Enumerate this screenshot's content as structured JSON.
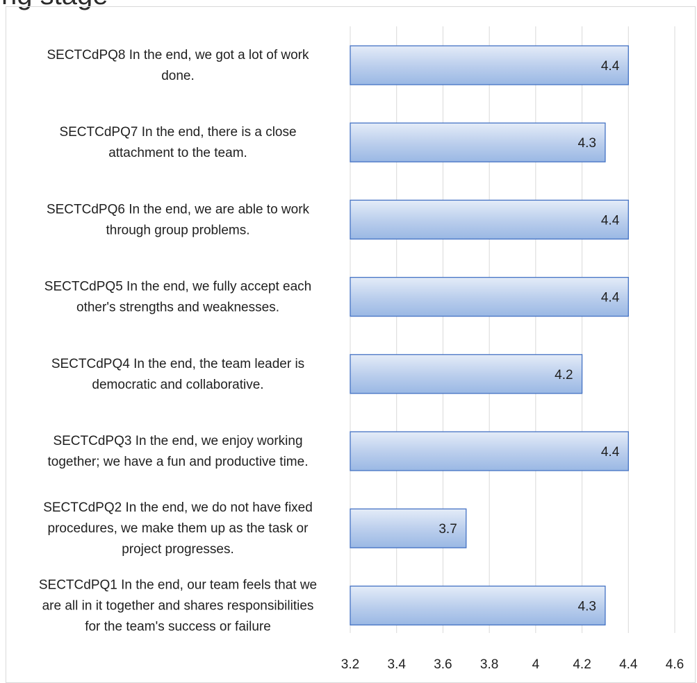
{
  "page": {
    "title_fragment": "ng stage"
  },
  "chart_data": {
    "type": "bar",
    "orientation": "horizontal",
    "categories": [
      "SECTCdPQ8 In the end, we got a lot of work done.",
      "SECTCdPQ7 In the end, there is a close attachment to the team.",
      "SECTCdPQ6 In the end, we are able to work through group problems.",
      "SECTCdPQ5 In the end, we fully accept each other's strengths and weaknesses.",
      "SECTCdPQ4 In the end, the team leader is democratic and collaborative.",
      "SECTCdPQ3 In the end, we enjoy working together; we have a fun and productive time.",
      "SECTCdPQ2 In the end, we do not have fixed procedures, we make them up as the task or project progresses.",
      "SECTCdPQ1 In the end, our team feels that we are all in it together and shares responsibilities for the team's success or failure"
    ],
    "category_lines": [
      [
        "SECTCdPQ8 In the end, we got a lot of work",
        "done."
      ],
      [
        "SECTCdPQ7 In the end, there is a close",
        "attachment to the team."
      ],
      [
        "SECTCdPQ6 In the end, we are able to work",
        "through group problems."
      ],
      [
        "SECTCdPQ5 In the end, we fully accept each",
        "other's strengths and weaknesses."
      ],
      [
        "SECTCdPQ4 In the end, the team leader is",
        "democratic and collaborative."
      ],
      [
        "SECTCdPQ3 In the end, we enjoy working",
        "together; we have a fun and productive time."
      ],
      [
        "SECTCdPQ2 In the end, we do not have fixed",
        "procedures, we make them up as the task or",
        "project progresses."
      ],
      [
        "SECTCdPQ1 In the end, our team feels that we",
        "are all in it together and shares responsibilities",
        "for the team's success or failure"
      ]
    ],
    "values": [
      4.4,
      4.3,
      4.4,
      4.4,
      4.2,
      4.4,
      3.7,
      4.3
    ],
    "value_labels": [
      "4.4",
      "4.3",
      "4.4",
      "4.4",
      "4.2",
      "4.4",
      "3.7",
      "4.3"
    ],
    "xlim": [
      3.2,
      4.6
    ],
    "x_ticks": [
      "3.2",
      "3.4",
      "3.6",
      "3.8",
      "4",
      "4.2",
      "4.4",
      "4.6"
    ],
    "grid": true,
    "legend": "none",
    "colors": {
      "bar_fill_light": "#e4ecf8",
      "bar_fill_mid": "#b9cdec",
      "bar_fill_dark": "#9ab8e4",
      "bar_border": "#4472c4",
      "grid": "#d9d9d9"
    }
  }
}
